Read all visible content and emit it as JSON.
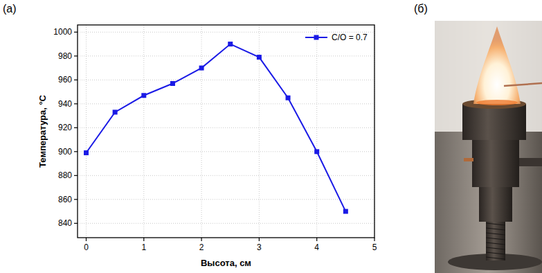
{
  "panel_labels": [
    "(а)",
    "(б)"
  ],
  "chart_data": {
    "type": "line",
    "x_label": "Высота, см",
    "y_label": "Температура, °C",
    "x": [
      0,
      0.5,
      1,
      1.5,
      2,
      2.5,
      3,
      3.5,
      4,
      4.5
    ],
    "series": [
      {
        "name": "C/O = 0.7",
        "color": "#1a1ae6",
        "marker": "square",
        "line_style": "solid",
        "values": [
          899,
          933,
          947,
          957,
          970,
          990,
          979,
          945,
          900,
          850
        ]
      }
    ],
    "xlim": [
      -0.15,
      5
    ],
    "ylim": [
      828,
      1006
    ],
    "xticks": [
      0,
      1,
      2,
      3,
      4,
      5
    ],
    "yticks": [
      840,
      860,
      880,
      900,
      920,
      940,
      960,
      980,
      1000
    ],
    "grid": true,
    "legend": "upper right"
  }
}
